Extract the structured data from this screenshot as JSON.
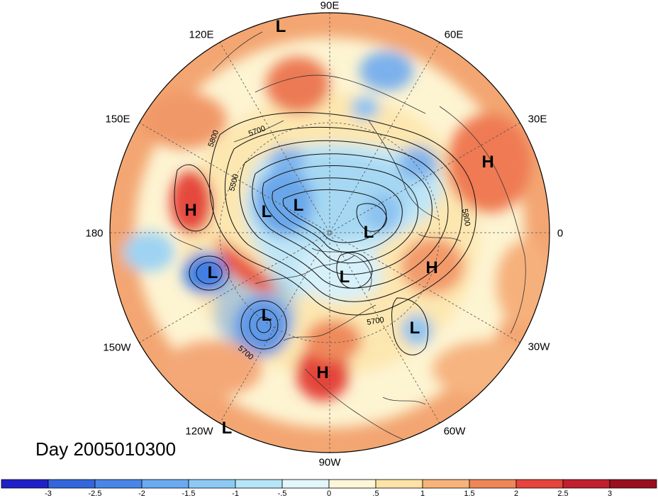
{
  "title": "Day 2005010300",
  "longitude_labels": [
    "90E",
    "60E",
    "30E",
    "0",
    "30W",
    "60W",
    "90W",
    "120W",
    "150W",
    "180",
    "150E",
    "120E"
  ],
  "contour_labels": [
    "5800",
    "5700",
    "5500",
    "5800",
    "5700",
    "5700"
  ],
  "pressure_centers": [
    {
      "type": "L"
    },
    {
      "type": "H"
    },
    {
      "type": "L"
    },
    {
      "type": "L"
    },
    {
      "type": "L"
    },
    {
      "type": "H"
    },
    {
      "type": "L"
    },
    {
      "type": "L"
    },
    {
      "type": "H"
    },
    {
      "type": "L"
    },
    {
      "type": "L"
    },
    {
      "type": "H"
    },
    {
      "type": "L"
    }
  ],
  "colorbar": {
    "ticks": [
      "-3",
      "-2.5",
      "-2",
      "-1.5",
      "-1",
      "-.5",
      "0",
      ".5",
      "1",
      "1.5",
      "2",
      "2.5",
      "3"
    ],
    "colors": [
      "#2020c8",
      "#3366dd",
      "#4a86e8",
      "#6aaaf0",
      "#8ccaf5",
      "#b6e6f8",
      "#e2f6fb",
      "#fdf7d8",
      "#fde3a6",
      "#f8b37a",
      "#ef8657",
      "#e6443c",
      "#c21e2c",
      "#9a0f20"
    ]
  },
  "colors": {
    "coastline": "#333333",
    "contour": "#111111",
    "grid": "#555555"
  }
}
